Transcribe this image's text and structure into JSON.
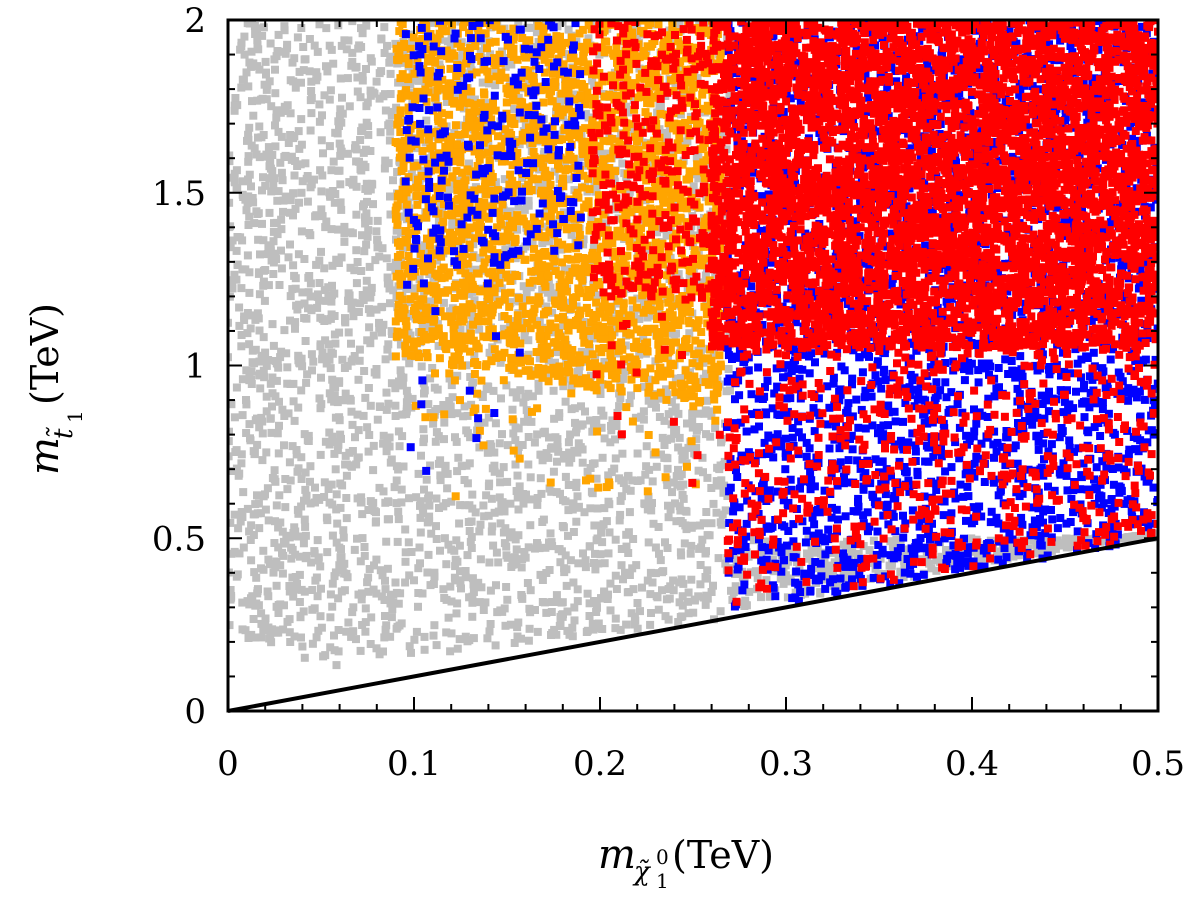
{
  "chart_data": {
    "type": "scatter",
    "title": "",
    "x_axis": {
      "symbol": "m",
      "subscript": "χ̃",
      "subscript_sup": "0",
      "subscript_sub": "1",
      "unit": "(TeV)",
      "range": [
        0,
        0.5
      ],
      "ticks": [
        0,
        0.1,
        0.2,
        0.3,
        0.4,
        0.5
      ],
      "tick_labels": [
        "0",
        "0.1",
        "0.2",
        "0.3",
        "0.4",
        "0.5"
      ]
    },
    "y_axis": {
      "symbol": "m",
      "subscript": "t̃",
      "subscript_sub": "1",
      "unit": "(TeV)",
      "range": [
        0,
        2
      ],
      "ticks": [
        0,
        0.5,
        1,
        1.5,
        2
      ],
      "tick_labels": [
        "0",
        "0.5",
        "1",
        "1.5",
        "2"
      ]
    },
    "reference_line": {
      "name": "m_stop = m_neutralino",
      "from": [
        0,
        0
      ],
      "to": [
        0.5,
        0.5
      ],
      "color": "#000000"
    },
    "series": [
      {
        "name": "grey",
        "color": "#bebebe",
        "regions": [
          {
            "x": [
              0.0,
              0.04
            ],
            "y_min_at": [
              0.22,
              0.18
            ],
            "y_max": 2.0,
            "density": 520
          },
          {
            "x": [
              0.04,
              0.27
            ],
            "y_min_at": [
              0.12,
              0.27
            ],
            "y_max": 2.0,
            "density": 2600
          },
          {
            "x": [
              0.27,
              0.5
            ],
            "y_min_at": [
              0.29,
              0.52
            ],
            "y_max": 0.5,
            "density": 400
          }
        ]
      },
      {
        "name": "orange",
        "color": "#ffa500",
        "regions": [
          {
            "x": [
              0.09,
              0.265
            ],
            "y_min_at": [
              1.02,
              0.88
            ],
            "y_max": 2.0,
            "density": 2400
          },
          {
            "x": [
              0.095,
              0.265
            ],
            "y_min_at": [
              0.62,
              0.62
            ],
            "y_max": 1.0,
            "density": 55
          }
        ]
      },
      {
        "name": "blue",
        "color": "#0000ff",
        "regions": [
          {
            "x": [
              0.095,
              0.19
            ],
            "y_min_at": [
              1.25,
              1.3
            ],
            "y_max": 2.0,
            "density": 210
          },
          {
            "x": [
              0.095,
              0.16
            ],
            "y_min_at": [
              0.6,
              0.6
            ],
            "y_max": 1.3,
            "density": 14
          },
          {
            "x": [
              0.268,
              0.5
            ],
            "y_min_at": [
              0.28,
              0.5
            ],
            "y_max": 2.0,
            "density": 2600
          }
        ]
      },
      {
        "name": "red",
        "color": "#ff0000",
        "regions": [
          {
            "x": [
              0.195,
              0.265
            ],
            "y_min_at": [
              1.2,
              1.2
            ],
            "y_max": 2.0,
            "density": 320
          },
          {
            "x": [
              0.19,
              0.265
            ],
            "y_min_at": [
              0.66,
              0.66
            ],
            "y_max": 1.2,
            "density": 20
          },
          {
            "x": [
              0.26,
              0.5
            ],
            "y_min_at": [
              1.05,
              1.05
            ],
            "y_max": 2.0,
            "density": 5200
          },
          {
            "x": [
              0.268,
              0.5
            ],
            "y_min_at": [
              0.3,
              0.5
            ],
            "y_max": 1.05,
            "density": 520
          }
        ]
      }
    ]
  }
}
